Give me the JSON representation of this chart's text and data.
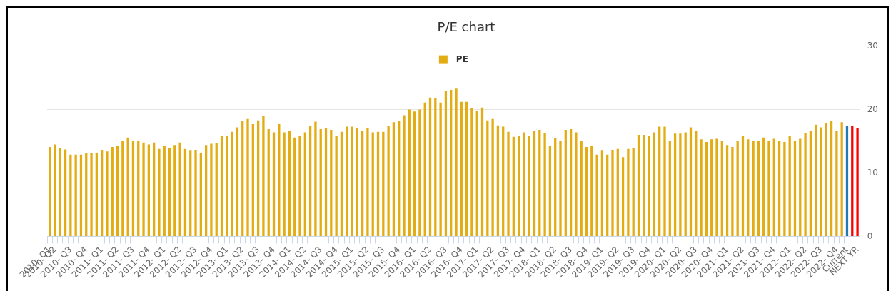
{
  "chart_data": {
    "type": "bar",
    "title": "P/E chart",
    "categories": [
      "2010- Q1",
      "2010- Q2",
      null,
      null,
      "2010- Q3",
      null,
      null,
      "2010- Q4",
      null,
      null,
      "2011- Q1",
      null,
      null,
      "2011- Q2",
      null,
      null,
      "2011- Q3",
      null,
      null,
      "2011- Q4",
      null,
      null,
      "2012- Q1",
      null,
      null,
      "2012- Q2",
      null,
      null,
      "2012- Q3",
      null,
      null,
      "2012- Q4",
      null,
      null,
      "2013- Q1",
      null,
      null,
      "2013- Q2",
      null,
      null,
      "2013- Q3",
      null,
      null,
      "2013- Q4",
      null,
      null,
      "2014- Q1",
      null,
      null,
      "2014- Q2",
      null,
      null,
      "2014- Q3",
      null,
      null,
      "2014- Q4",
      null,
      null,
      "2015- Q1",
      null,
      null,
      "2015- Q2",
      null,
      null,
      "2015- Q3",
      null,
      null,
      "2015- Q4",
      null,
      null,
      "2016- Q1",
      null,
      null,
      "2016- Q2",
      null,
      null,
      "2016- Q3",
      null,
      null,
      "2016- Q4",
      null,
      null,
      "2017- Q1",
      null,
      null,
      "2017- Q2",
      null,
      null,
      "2017- Q3",
      null,
      null,
      "2017- Q4",
      null,
      null,
      "2018- Q1",
      null,
      null,
      "2018- Q2",
      null,
      null,
      "2018- Q3",
      null,
      null,
      "2018- Q4",
      null,
      null,
      "2019- Q1",
      null,
      null,
      "2019- Q2",
      null,
      null,
      "2019- Q3",
      null,
      null,
      "2019- Q4",
      null,
      null,
      "2020- Q1",
      null,
      null,
      "2020- Q2",
      null,
      null,
      "2020- Q3",
      null,
      null,
      "2020- Q4",
      null,
      null,
      "2021- Q1",
      null,
      null,
      "2021- Q2",
      null,
      null,
      "2021- Q3",
      null,
      null,
      "2021- Q4",
      null,
      null,
      "2022- Q1",
      null,
      null,
      "2022- Q2",
      null,
      null,
      "2022- Q3",
      null,
      null,
      "2022- Q4",
      null,
      "Current",
      null,
      "NEXT YR"
    ],
    "series": [
      {
        "name": "PE",
        "color": "#e3ac12",
        "colors": [
          "#e3ac12",
          "#e3ac12",
          "#e3ac12",
          "#e3ac12",
          "#e3ac12",
          "#e3ac12",
          "#e3ac12",
          "#e3ac12",
          "#e3ac12",
          "#e3ac12",
          "#e3ac12",
          "#e3ac12",
          "#e3ac12",
          "#e3ac12",
          "#e3ac12",
          "#e3ac12",
          "#e3ac12",
          "#e3ac12",
          "#e3ac12",
          "#e3ac12",
          "#e3ac12",
          "#e3ac12",
          "#e3ac12",
          "#e3ac12",
          "#e3ac12",
          "#e3ac12",
          "#e3ac12",
          "#e3ac12",
          "#e3ac12",
          "#e3ac12",
          "#e3ac12",
          "#e3ac12",
          "#e3ac12",
          "#e3ac12",
          "#e3ac12",
          "#e3ac12",
          "#e3ac12",
          "#e3ac12",
          "#e3ac12",
          "#e3ac12",
          "#e3ac12",
          "#e3ac12",
          "#e3ac12",
          "#e3ac12",
          "#e3ac12",
          "#e3ac12",
          "#e3ac12",
          "#e3ac12",
          "#e3ac12",
          "#e3ac12",
          "#e3ac12",
          "#e3ac12",
          "#e3ac12",
          "#e3ac12",
          "#e3ac12",
          "#e3ac12",
          "#e3ac12",
          "#e3ac12",
          "#e3ac12",
          "#e3ac12",
          "#e3ac12",
          "#e3ac12",
          "#e3ac12",
          "#e3ac12",
          "#e3ac12",
          "#e3ac12",
          "#e3ac12",
          "#e3ac12",
          "#e3ac12",
          "#e3ac12",
          "#e3ac12",
          "#e3ac12",
          "#e3ac12",
          "#e3ac12",
          "#e3ac12",
          "#e3ac12",
          "#e3ac12",
          "#e3ac12",
          "#e3ac12",
          "#e3ac12",
          "#e3ac12",
          "#e3ac12",
          "#e3ac12",
          "#e3ac12",
          "#e3ac12",
          "#e3ac12",
          "#e3ac12",
          "#e3ac12",
          "#e3ac12",
          "#e3ac12",
          "#e3ac12",
          "#e3ac12",
          "#e3ac12",
          "#e3ac12",
          "#e3ac12",
          "#e3ac12",
          "#e3ac12",
          "#e3ac12",
          "#e3ac12",
          "#e3ac12",
          "#e3ac12",
          "#e3ac12",
          "#e3ac12",
          "#e3ac12",
          "#e3ac12",
          "#e3ac12",
          "#e3ac12",
          "#e3ac12",
          "#e3ac12",
          "#e3ac12",
          "#e3ac12",
          "#e3ac12",
          "#e3ac12",
          "#e3ac12",
          "#e3ac12",
          "#e3ac12",
          "#e3ac12",
          "#e3ac12",
          "#e3ac12",
          "#e3ac12",
          "#e3ac12",
          "#e3ac12",
          "#e3ac12",
          "#e3ac12",
          "#e3ac12",
          "#e3ac12",
          "#e3ac12",
          "#e3ac12",
          "#e3ac12",
          "#e3ac12",
          "#e3ac12",
          "#e3ac12",
          "#e3ac12",
          "#e3ac12",
          "#e3ac12",
          "#e3ac12",
          "#e3ac12",
          "#e3ac12",
          "#e3ac12",
          "#e3ac12",
          "#e3ac12",
          "#e3ac12",
          "#e3ac12",
          "#e3ac12",
          "#e3ac12",
          "#e3ac12",
          "#e3ac12",
          "#e3ac12",
          "#e3ac12",
          "#e3ac12",
          "#e3ac12",
          "#e3ac12",
          "#e3ac12",
          "#2278b5",
          "#fe0000",
          "#fe0000"
        ],
        "values": [
          14.1,
          14.5,
          14.0,
          13.7,
          12.9,
          12.9,
          12.9,
          13.2,
          13.1,
          13.1,
          13.6,
          13.4,
          14.1,
          14.3,
          15.1,
          15.6,
          15.1,
          15.0,
          14.8,
          14.5,
          14.8,
          13.8,
          14.3,
          14.0,
          14.4,
          14.8,
          13.8,
          13.5,
          13.6,
          13.2,
          14.4,
          14.6,
          14.7,
          15.8,
          15.8,
          16.5,
          17.2,
          18.2,
          18.5,
          17.7,
          18.3,
          19.0,
          16.9,
          16.4,
          17.7,
          16.4,
          16.6,
          15.6,
          15.8,
          16.4,
          17.4,
          18.1,
          16.9,
          17.1,
          16.8,
          15.9,
          16.5,
          17.3,
          17.3,
          17.1,
          16.7,
          17.1,
          16.4,
          16.5,
          16.5,
          17.4,
          18.0,
          18.2,
          19.1,
          20.0,
          19.7,
          20.0,
          21.1,
          21.9,
          21.8,
          21.1,
          22.9,
          23.1,
          23.3,
          21.2,
          21.2,
          20.2,
          19.8,
          20.3,
          18.3,
          18.5,
          17.5,
          17.3,
          16.5,
          15.7,
          15.8,
          16.4,
          15.9,
          16.6,
          16.8,
          16.3,
          14.3,
          15.5,
          15.1,
          16.8,
          16.9,
          16.4,
          15.0,
          14.1,
          14.2,
          12.9,
          13.5,
          12.9,
          13.6,
          13.8,
          12.5,
          13.8,
          14.0,
          16.0,
          16.0,
          15.9,
          16.4,
          17.3,
          17.3,
          15.0,
          16.2,
          16.2,
          16.4,
          17.2,
          16.7,
          15.3,
          14.9,
          15.3,
          15.4,
          15.1,
          14.4,
          14.1,
          15.1,
          15.9,
          15.3,
          15.1,
          15.0,
          15.6,
          15.1,
          15.4,
          15.0,
          14.9,
          15.8,
          15.0,
          15.4,
          16.3,
          16.7,
          17.6,
          17.2,
          17.8,
          18.2,
          16.6,
          18.0,
          17.4,
          17.4,
          17.1
        ]
      }
    ],
    "ylim": [
      0,
      30
    ],
    "yticks": [
      0,
      10,
      20,
      30
    ],
    "grid": "y",
    "legend": "top"
  }
}
